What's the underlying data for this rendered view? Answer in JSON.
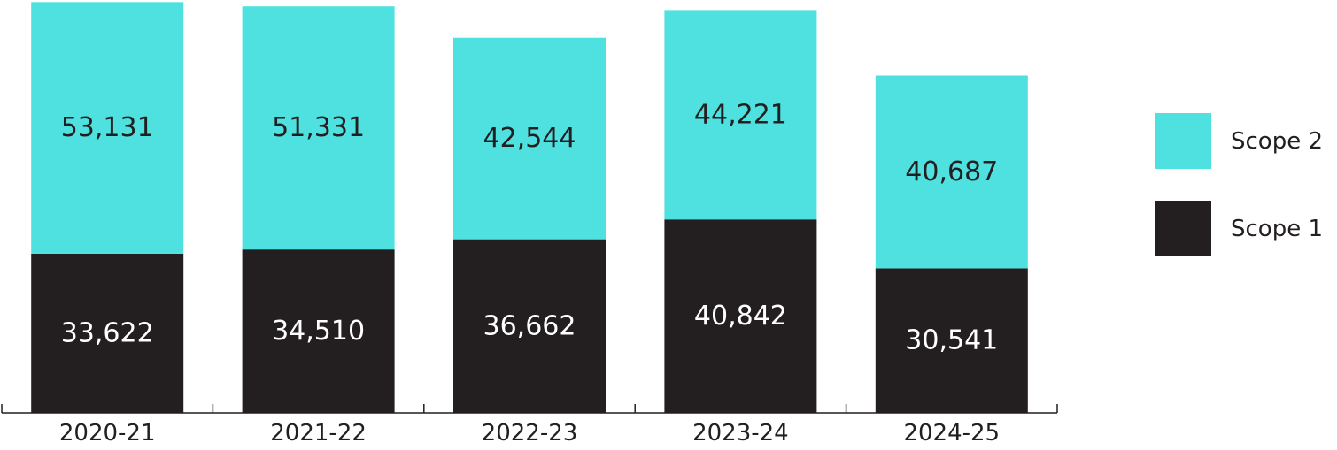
{
  "chart_data": {
    "type": "bar",
    "stacked": true,
    "categories": [
      "2020-21",
      "2021-22",
      "2022-23",
      "2023-24",
      "2024-25"
    ],
    "series": [
      {
        "name": "Scope 1",
        "values": [
          33622,
          34510,
          36662,
          40842,
          30541
        ],
        "color": "#231f20",
        "label_color": "#ffffff"
      },
      {
        "name": "Scope 2",
        "values": [
          53131,
          51331,
          42544,
          44221,
          40687
        ],
        "color": "#4fe0e0",
        "label_color": "#231f20"
      }
    ],
    "value_labels": [
      [
        "33,622",
        "34,510",
        "36,662",
        "40,842",
        "30,541"
      ],
      [
        "53,131",
        "51,331",
        "42,544",
        "44,221",
        "40,687"
      ]
    ],
    "ylim": [
      0,
      87000
    ],
    "grid": false,
    "legend": {
      "placement": "right",
      "order": [
        "Scope 2",
        "Scope 1"
      ]
    },
    "axis_color": "#231f20"
  }
}
